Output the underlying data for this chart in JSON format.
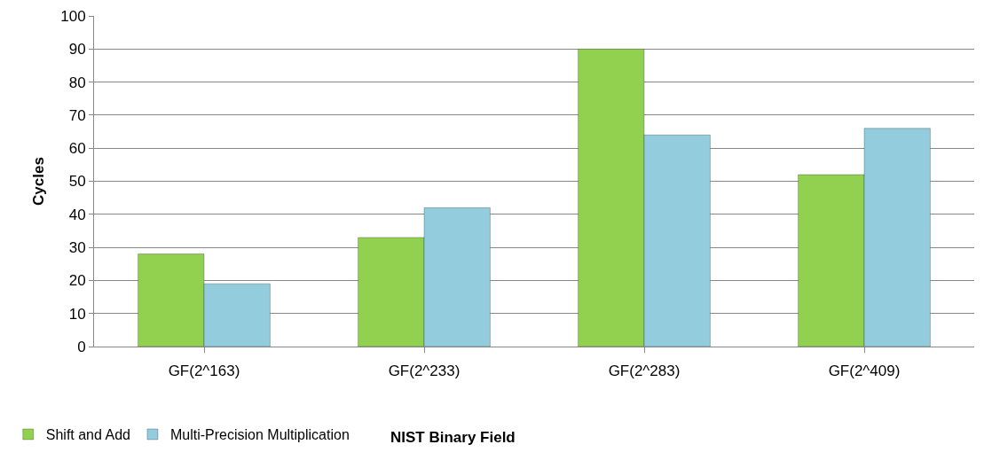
{
  "chart_data": {
    "type": "bar",
    "xlabel": "NIST Binary Field",
    "ylabel": "Cycles",
    "categories": [
      "GF(2^163)",
      "GF(2^233)",
      "GF(2^283)",
      "GF(2^409)"
    ],
    "series": [
      {
        "name": "Shift and Add",
        "color": "#92d050",
        "values": [
          28,
          33,
          90,
          52
        ]
      },
      {
        "name": "Multi-Precision Multiplication",
        "color": "#93cddd",
        "values": [
          19,
          42,
          64,
          66
        ]
      }
    ],
    "ylim": [
      0,
      100
    ],
    "yticks": [
      0,
      10,
      20,
      30,
      40,
      50,
      60,
      70,
      80,
      90,
      100
    ],
    "grid": "y",
    "legend": "bottom left"
  }
}
